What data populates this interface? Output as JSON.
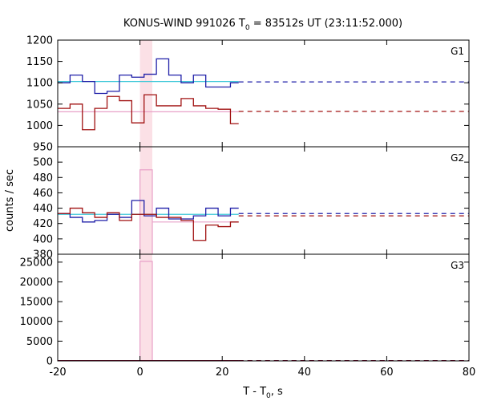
{
  "chart_data": {
    "type": "line",
    "title_prefix": "KONUS-WIND 991026 T",
    "title_sub": "0",
    "title_suffix": " = 83512s UT (23:11:52.000)",
    "ylabel": "counts / sec",
    "xlabel_prefix": "T - T",
    "xlabel_sub": "0",
    "xlabel_suffix": ", s",
    "xlim": [
      -20,
      80
    ],
    "xticks": [
      -20,
      0,
      20,
      40,
      60,
      80
    ],
    "colors": {
      "blue": "#1f1fa8",
      "red": "#a01010",
      "cyan": "#3fc8d8",
      "pink": "#e8a0c8",
      "shade": "#fbe0e6"
    },
    "highlight_interval": [
      0,
      3
    ],
    "panels": [
      {
        "name": "G1",
        "ylim": [
          950,
          1200
        ],
        "yticks": [
          950,
          1000,
          1050,
          1100,
          1150,
          1200
        ],
        "series": [
          {
            "name": "G1 blue",
            "color": "blue",
            "edges": [
              -20,
              -17,
              -14,
              -11,
              -8,
              -5,
              -2,
              1,
              4,
              7,
              10,
              13,
              16,
              19,
              22,
              24
            ],
            "values": [
              1100,
              1118,
              1103,
              1075,
              1080,
              1118,
              1113,
              1120,
              1156,
              1118,
              1100,
              1118,
              1090,
              1090,
              1100
            ]
          },
          {
            "name": "G1 red",
            "color": "red",
            "edges": [
              -20,
              -17,
              -14,
              -11,
              -8,
              -5,
              -2,
              1,
              4,
              7,
              10,
              13,
              16,
              19,
              22,
              24
            ],
            "values": [
              1040,
              1050,
              990,
              1040,
              1068,
              1058,
              1006,
              1072,
              1046,
              1046,
              1063,
              1046,
              1040,
              1038,
              1004
            ]
          }
        ],
        "background": [
          {
            "name": "G1 blue background",
            "color": "blue",
            "value": 1102
          },
          {
            "name": "G1 red background",
            "color": "red",
            "value": 1033
          }
        ],
        "fits": [
          {
            "name": "G1 cyan fit",
            "color": "cyan",
            "value": 1103
          },
          {
            "name": "G1 pink fit",
            "color": "pink",
            "value": 1032
          }
        ],
        "burst_bar": null
      },
      {
        "name": "G2",
        "ylim": [
          380,
          520
        ],
        "yticks": [
          380,
          400,
          420,
          440,
          460,
          480,
          500
        ],
        "series": [
          {
            "name": "G2 blue",
            "color": "blue",
            "edges": [
              -20,
              -17,
              -14,
              -11,
              -8,
              -5,
              -2,
              1,
              4,
              7,
              10,
              13,
              16,
              19,
              22,
              24
            ],
            "values": [
              433,
              428,
              422,
              424,
              432,
              428,
              450,
              430,
              440,
              426,
              426,
              430,
              440,
              430,
              440
            ]
          },
          {
            "name": "G2 red",
            "color": "red",
            "edges": [
              -20,
              -17,
              -14,
              -11,
              -8,
              -5,
              -2,
              1,
              4,
              7,
              10,
              13,
              16,
              19,
              22,
              24
            ],
            "values": [
              433,
              440,
              434,
              428,
              434,
              424,
              432,
              432,
              428,
              428,
              424,
              398,
              418,
              416,
              422
            ]
          }
        ],
        "background": [
          {
            "name": "G2 blue background",
            "color": "blue",
            "value": 433
          },
          {
            "name": "G2 red background",
            "color": "red",
            "value": 430
          }
        ],
        "fits": [
          {
            "name": "G2 cyan fit",
            "color": "cyan",
            "value": 432
          }
        ],
        "burst_bar": {
          "from": 0,
          "to": 3,
          "value": 490,
          "after_to": 24,
          "after_value": 422,
          "color": "pink"
        }
      },
      {
        "name": "G3",
        "ylim": [
          0,
          27000
        ],
        "yticks": [
          0,
          5000,
          10000,
          15000,
          20000,
          25000
        ],
        "series": [
          {
            "name": "G3 blue",
            "color": "blue",
            "edges": [
              -20,
              24
            ],
            "values": [
              70
            ]
          },
          {
            "name": "G3 red",
            "color": "red",
            "edges": [
              -20,
              24
            ],
            "values": [
              50
            ]
          }
        ],
        "background": [
          {
            "name": "G3 blue background",
            "color": "blue",
            "value": 70
          },
          {
            "name": "G3 red background",
            "color": "red",
            "value": 50
          }
        ],
        "fits": [
          {
            "name": "G3 cyan fit",
            "color": "cyan",
            "value": 60
          }
        ],
        "burst_bar": {
          "from": 0,
          "to": 3,
          "value": 25200,
          "after_to": null,
          "after_value": null,
          "color": "pink"
        }
      }
    ]
  }
}
